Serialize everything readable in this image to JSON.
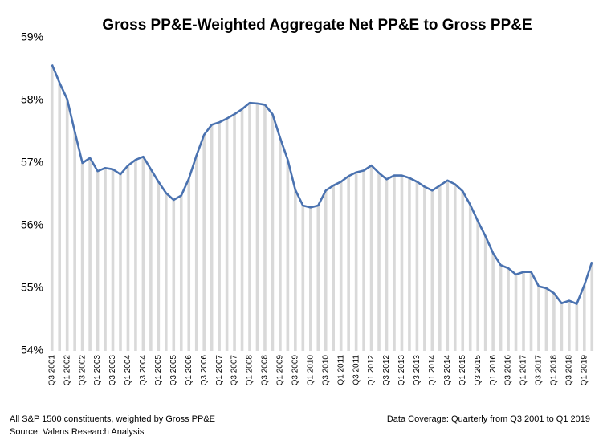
{
  "chart_data": {
    "type": "line",
    "title": "Gross PP&E-Weighted Aggregate Net PP&E to Gross PP&E",
    "footnote_left": [
      "All S&P 1500 constituents, weighted by Gross PP&E",
      "Source: Valens Research Analysis"
    ],
    "footnote_right": "Data Coverage:  Quarterly from Q3 2001 to Q1 2019",
    "categories": [
      "Q3 2001",
      null,
      "Q1 2002",
      null,
      "Q3 2002",
      null,
      "Q1 2003",
      null,
      "Q3 2003",
      null,
      "Q1 2004",
      null,
      "Q3 2004",
      null,
      "Q1 2005",
      null,
      "Q3 2005",
      null,
      "Q1 2006",
      null,
      "Q3 2006",
      null,
      "Q1 2007",
      null,
      "Q3 2007",
      null,
      "Q1 2008",
      null,
      "Q3 2008",
      null,
      "Q1 2009",
      null,
      "Q3 2009",
      null,
      "Q1 2010",
      null,
      "Q3 2010",
      null,
      "Q1 2011",
      null,
      "Q3 2011",
      null,
      "Q1 2012",
      null,
      "Q3 2012",
      null,
      "Q1 2013",
      null,
      "Q3 2013",
      null,
      "Q1 2014",
      null,
      "Q3 2014",
      null,
      "Q1 2015",
      null,
      "Q3 2015",
      null,
      "Q1 2016",
      null,
      "Q3 2016",
      null,
      "Q1 2017",
      null,
      "Q3 2017",
      null,
      "Q1 2018",
      null,
      "Q3 2018",
      null,
      "Q1 2019",
      null
    ],
    "series": [
      {
        "name": "Net PP&E to Gross PP&E",
        "color": "#4a72b0",
        "drop_color": "#d9d9d9",
        "values": [
          58.57,
          58.28,
          58.02,
          57.5,
          57.0,
          57.08,
          56.87,
          56.92,
          56.9,
          56.82,
          56.96,
          57.05,
          57.1,
          56.9,
          56.7,
          56.52,
          56.41,
          56.48,
          56.75,
          57.12,
          57.45,
          57.61,
          57.65,
          57.71,
          57.78,
          57.86,
          57.96,
          57.95,
          57.93,
          57.78,
          57.4,
          57.05,
          56.57,
          56.32,
          56.29,
          56.32,
          56.56,
          56.64,
          56.7,
          56.79,
          56.85,
          56.88,
          56.96,
          56.84,
          56.74,
          56.8,
          56.8,
          56.76,
          56.7,
          56.62,
          56.56,
          56.64,
          56.72,
          56.66,
          56.55,
          56.33,
          56.07,
          55.83,
          55.56,
          55.37,
          55.32,
          55.22,
          55.26,
          55.26,
          55.03,
          55.0,
          54.92,
          54.76,
          54.8,
          54.75,
          55.05,
          55.42
        ]
      }
    ],
    "ylim": [
      54,
      59
    ],
    "yticks": [
      {
        "value": 54,
        "label": "54%"
      },
      {
        "value": 55,
        "label": "55%"
      },
      {
        "value": 56,
        "label": "56%"
      },
      {
        "value": 57,
        "label": "57%"
      },
      {
        "value": 58,
        "label": "58%"
      },
      {
        "value": 59,
        "label": "59%"
      }
    ],
    "grid": false
  }
}
